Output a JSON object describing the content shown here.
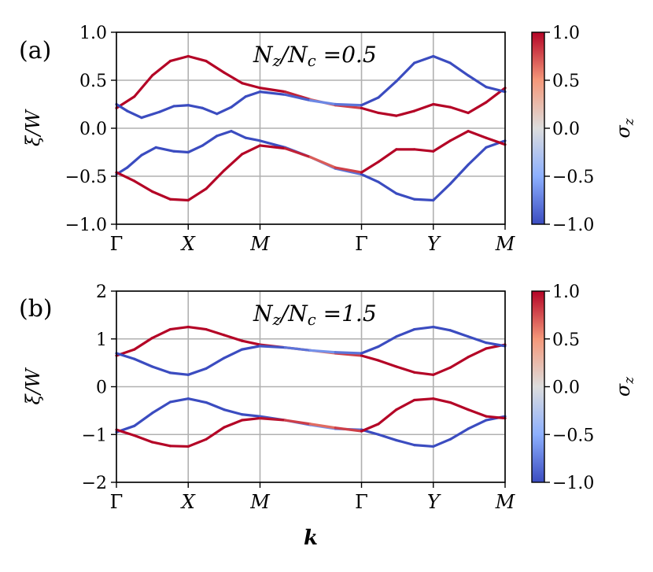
{
  "chart_data": [
    {
      "type": "line",
      "panel_label": "(a)",
      "annotation": "N_z/N_c =0.5",
      "ylabel": "ξ/W",
      "xlabel": "",
      "ylim": [
        -1.0,
        1.0
      ],
      "yticks": [
        -1.0,
        -0.5,
        0.0,
        0.5,
        1.0
      ],
      "ytick_labels": [
        "−1.0",
        "−0.5",
        "0.0",
        "0.5",
        "1.0"
      ],
      "xticks": [
        0,
        1,
        2,
        3.414,
        4.414,
        5.414
      ],
      "xtick_labels": [
        "Γ",
        "X",
        "M",
        "Γ",
        "Y",
        "M"
      ],
      "grid": true,
      "colorbar": {
        "label": "σ_z",
        "range": [
          -1.0,
          1.0
        ],
        "ticks": [
          1.0,
          0.5,
          0.0,
          -0.5,
          -1.0
        ],
        "tick_labels": [
          "1.0",
          "0.5",
          "0.0",
          "−0.5",
          "−1.0"
        ],
        "colormap": "coolwarm"
      },
      "series": [
        {
          "points": [
            [
              0,
              0.21
            ],
            [
              0.25,
              0.33
            ],
            [
              0.5,
              0.55
            ],
            [
              0.75,
              0.7
            ],
            [
              1,
              0.75
            ],
            [
              1.25,
              0.7
            ],
            [
              1.5,
              0.58
            ],
            [
              1.75,
              0.47
            ],
            [
              2,
              0.42
            ],
            [
              2.35,
              0.38
            ],
            [
              2.7,
              0.3
            ],
            [
              3.05,
              0.24
            ],
            [
              3.414,
              0.21
            ],
            [
              3.65,
              0.16
            ],
            [
              3.9,
              0.13
            ],
            [
              4.15,
              0.18
            ],
            [
              4.414,
              0.25
            ],
            [
              4.65,
              0.22
            ],
            [
              4.9,
              0.16
            ],
            [
              5.15,
              0.27
            ],
            [
              5.414,
              0.42
            ]
          ],
          "sigma": [
            1,
            1,
            1,
            1,
            1,
            1,
            1,
            1,
            1,
            1,
            0.8,
            0.6,
            1,
            1,
            1,
            1,
            1,
            1,
            1,
            1,
            1
          ]
        },
        {
          "points": [
            [
              0,
              0.25
            ],
            [
              0.15,
              0.18
            ],
            [
              0.35,
              0.11
            ],
            [
              0.6,
              0.17
            ],
            [
              0.8,
              0.23
            ],
            [
              1,
              0.24
            ],
            [
              1.2,
              0.21
            ],
            [
              1.4,
              0.15
            ],
            [
              1.6,
              0.22
            ],
            [
              1.8,
              0.33
            ],
            [
              2,
              0.38
            ],
            [
              2.35,
              0.35
            ],
            [
              2.7,
              0.29
            ],
            [
              3.05,
              0.25
            ],
            [
              3.414,
              0.24
            ],
            [
              3.65,
              0.32
            ],
            [
              3.9,
              0.49
            ],
            [
              4.15,
              0.68
            ],
            [
              4.414,
              0.75
            ],
            [
              4.65,
              0.68
            ],
            [
              4.9,
              0.55
            ],
            [
              5.15,
              0.43
            ],
            [
              5.414,
              0.38
            ]
          ],
          "sigma": [
            -1,
            -1,
            -1,
            -1,
            -1,
            -1,
            -1,
            -1,
            -1,
            -1,
            -1,
            -1,
            -0.8,
            -0.6,
            -1,
            -1,
            -1,
            -1,
            -1,
            -1,
            -1,
            -1,
            -1
          ]
        },
        {
          "points": [
            [
              0,
              -0.48
            ],
            [
              0.15,
              -0.41
            ],
            [
              0.35,
              -0.28
            ],
            [
              0.55,
              -0.2
            ],
            [
              0.8,
              -0.24
            ],
            [
              1,
              -0.25
            ],
            [
              1.2,
              -0.18
            ],
            [
              1.4,
              -0.08
            ],
            [
              1.6,
              -0.03
            ],
            [
              1.8,
              -0.1
            ],
            [
              2,
              -0.13
            ],
            [
              2.35,
              -0.2
            ],
            [
              2.7,
              -0.3
            ],
            [
              3.05,
              -0.42
            ],
            [
              3.414,
              -0.48
            ],
            [
              3.65,
              -0.56
            ],
            [
              3.9,
              -0.68
            ],
            [
              4.15,
              -0.74
            ],
            [
              4.414,
              -0.75
            ],
            [
              4.65,
              -0.58
            ],
            [
              4.9,
              -0.38
            ],
            [
              5.15,
              -0.2
            ],
            [
              5.414,
              -0.13
            ]
          ],
          "sigma": [
            -1,
            -1,
            -1,
            -1,
            -1,
            -1,
            -1,
            -1,
            -1,
            -1,
            -1,
            -1,
            -0.8,
            -0.6,
            -1,
            -1,
            -1,
            -1,
            -1,
            -1,
            -1,
            -1,
            -1
          ]
        },
        {
          "points": [
            [
              0,
              -0.46
            ],
            [
              0.25,
              -0.55
            ],
            [
              0.5,
              -0.66
            ],
            [
              0.75,
              -0.74
            ],
            [
              1,
              -0.75
            ],
            [
              1.25,
              -0.63
            ],
            [
              1.5,
              -0.44
            ],
            [
              1.75,
              -0.27
            ],
            [
              2,
              -0.18
            ],
            [
              2.35,
              -0.21
            ],
            [
              2.7,
              -0.3
            ],
            [
              3.05,
              -0.41
            ],
            [
              3.414,
              -0.46
            ],
            [
              3.65,
              -0.35
            ],
            [
              3.9,
              -0.22
            ],
            [
              4.15,
              -0.22
            ],
            [
              4.414,
              -0.24
            ],
            [
              4.65,
              -0.13
            ],
            [
              4.9,
              -0.03
            ],
            [
              5.15,
              -0.1
            ],
            [
              5.414,
              -0.17
            ]
          ],
          "sigma": [
            1,
            1,
            1,
            1,
            1,
            1,
            1,
            1,
            1,
            1,
            0.8,
            0.6,
            1,
            1,
            1,
            1,
            1,
            1,
            1,
            1,
            1
          ]
        }
      ]
    },
    {
      "type": "line",
      "panel_label": "(b)",
      "annotation": "N_z/N_c =1.5",
      "ylabel": "ξ/W",
      "xlabel": "k",
      "ylim": [
        -2,
        2
      ],
      "yticks": [
        -2,
        -1,
        0,
        1,
        2
      ],
      "ytick_labels": [
        "−2",
        "−1",
        "0",
        "1",
        "2"
      ],
      "xticks": [
        0,
        1,
        2,
        3.414,
        4.414,
        5.414
      ],
      "xtick_labels": [
        "Γ",
        "X",
        "M",
        "Γ",
        "Y",
        "M"
      ],
      "grid": true,
      "colorbar": {
        "label": "σ_z",
        "range": [
          -1.0,
          1.0
        ],
        "ticks": [
          1.0,
          0.5,
          0.0,
          -0.5,
          -1.0
        ],
        "tick_labels": [
          "1.0",
          "0.5",
          "0.0",
          "−0.5",
          "−1.0"
        ],
        "colormap": "coolwarm"
      },
      "series": [
        {
          "points": [
            [
              0,
              0.65
            ],
            [
              0.25,
              0.78
            ],
            [
              0.5,
              1.02
            ],
            [
              0.75,
              1.2
            ],
            [
              1,
              1.25
            ],
            [
              1.25,
              1.2
            ],
            [
              1.5,
              1.08
            ],
            [
              1.75,
              0.96
            ],
            [
              2,
              0.88
            ],
            [
              2.35,
              0.82
            ],
            [
              2.7,
              0.76
            ],
            [
              3.05,
              0.7
            ],
            [
              3.414,
              0.65
            ],
            [
              3.65,
              0.55
            ],
            [
              3.9,
              0.42
            ],
            [
              4.15,
              0.3
            ],
            [
              4.414,
              0.25
            ],
            [
              4.65,
              0.4
            ],
            [
              4.9,
              0.62
            ],
            [
              5.15,
              0.8
            ],
            [
              5.414,
              0.88
            ]
          ],
          "sigma": [
            1,
            1,
            1,
            1,
            1,
            1,
            1,
            1,
            1,
            0.9,
            0.7,
            0.6,
            1,
            1,
            1,
            1,
            1,
            1,
            1,
            1,
            1
          ]
        },
        {
          "points": [
            [
              0,
              0.7
            ],
            [
              0.25,
              0.58
            ],
            [
              0.5,
              0.42
            ],
            [
              0.75,
              0.29
            ],
            [
              1,
              0.25
            ],
            [
              1.25,
              0.38
            ],
            [
              1.5,
              0.6
            ],
            [
              1.75,
              0.78
            ],
            [
              2,
              0.85
            ],
            [
              2.35,
              0.82
            ],
            [
              2.7,
              0.76
            ],
            [
              3.05,
              0.72
            ],
            [
              3.414,
              0.7
            ],
            [
              3.65,
              0.84
            ],
            [
              3.9,
              1.05
            ],
            [
              4.15,
              1.2
            ],
            [
              4.414,
              1.25
            ],
            [
              4.65,
              1.18
            ],
            [
              4.9,
              1.05
            ],
            [
              5.15,
              0.92
            ],
            [
              5.414,
              0.85
            ]
          ],
          "sigma": [
            -1,
            -1,
            -1,
            -1,
            -1,
            -1,
            -1,
            -1,
            -1,
            -0.9,
            -0.7,
            -0.6,
            -1,
            -1,
            -1,
            -1,
            -1,
            -1,
            -1,
            -1,
            -1
          ]
        },
        {
          "points": [
            [
              0,
              -0.95
            ],
            [
              0.25,
              -0.82
            ],
            [
              0.5,
              -0.55
            ],
            [
              0.75,
              -0.32
            ],
            [
              1,
              -0.25
            ],
            [
              1.25,
              -0.33
            ],
            [
              1.5,
              -0.48
            ],
            [
              1.75,
              -0.58
            ],
            [
              2,
              -0.62
            ],
            [
              2.35,
              -0.7
            ],
            [
              2.7,
              -0.8
            ],
            [
              3.05,
              -0.88
            ],
            [
              3.414,
              -0.9
            ],
            [
              3.65,
              -1.0
            ],
            [
              3.9,
              -1.12
            ],
            [
              4.15,
              -1.22
            ],
            [
              4.414,
              -1.25
            ],
            [
              4.65,
              -1.1
            ],
            [
              4.9,
              -0.88
            ],
            [
              5.15,
              -0.7
            ],
            [
              5.414,
              -0.62
            ]
          ],
          "sigma": [
            -1,
            -1,
            -1,
            -1,
            -1,
            -1,
            -1,
            -1,
            -1,
            -0.9,
            -0.7,
            -0.6,
            -1,
            -1,
            -1,
            -1,
            -1,
            -1,
            -1,
            -1,
            -1
          ]
        },
        {
          "points": [
            [
              0,
              -0.9
            ],
            [
              0.25,
              -1.02
            ],
            [
              0.5,
              -1.16
            ],
            [
              0.75,
              -1.24
            ],
            [
              1,
              -1.25
            ],
            [
              1.25,
              -1.1
            ],
            [
              1.5,
              -0.85
            ],
            [
              1.75,
              -0.7
            ],
            [
              2,
              -0.66
            ],
            [
              2.35,
              -0.7
            ],
            [
              2.7,
              -0.78
            ],
            [
              3.05,
              -0.86
            ],
            [
              3.414,
              -0.93
            ],
            [
              3.65,
              -0.78
            ],
            [
              3.9,
              -0.48
            ],
            [
              4.15,
              -0.28
            ],
            [
              4.414,
              -0.25
            ],
            [
              4.65,
              -0.33
            ],
            [
              4.9,
              -0.48
            ],
            [
              5.15,
              -0.62
            ],
            [
              5.414,
              -0.66
            ]
          ],
          "sigma": [
            1,
            1,
            1,
            1,
            1,
            1,
            1,
            1,
            1,
            0.9,
            0.7,
            0.6,
            1,
            1,
            1,
            1,
            1,
            1,
            1,
            1,
            1
          ]
        }
      ]
    }
  ]
}
